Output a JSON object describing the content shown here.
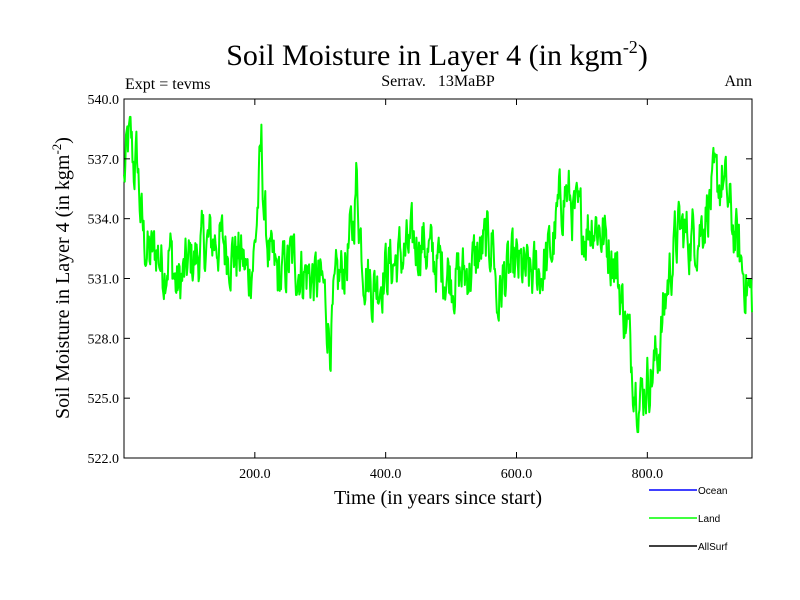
{
  "chart_data": {
    "type": "line",
    "title": "Soil Moisture in Layer 4 (in kgm",
    "title_exponent": "-2",
    "title_suffix": ")",
    "subtitle_left": "Expt = tevms",
    "subtitle_center": "Serrav.   13MaBP",
    "subtitle_right": "Ann",
    "xlabel": "Time (in years since start)",
    "ylabel": "Soil Moisture in Layer 4 (in kgm",
    "ylabel_exponent": "-2",
    "ylabel_suffix": ")",
    "xlim": [
      0,
      960
    ],
    "ylim": [
      522,
      540
    ],
    "xticks": [
      200,
      400,
      600,
      800
    ],
    "xtick_labels": [
      "200.0",
      "400.0",
      "600.0",
      "800.0"
    ],
    "yticks": [
      522,
      525,
      528,
      531,
      534,
      537,
      540
    ],
    "ytick_labels": [
      "522.0",
      "525.0",
      "528.0",
      "531.0",
      "534.0",
      "537.0",
      "540.0"
    ],
    "legend": [
      {
        "name": "Ocean",
        "color": "#0000ff"
      },
      {
        "name": "Land",
        "color": "#00ff00"
      },
      {
        "name": "AllSurf",
        "color": "#000000"
      }
    ],
    "series": [
      {
        "name": "Land",
        "color": "#00ff00",
        "anchors": [
          [
            0,
            535.8
          ],
          [
            5,
            537.5
          ],
          [
            10,
            538.0
          ],
          [
            15,
            536.5
          ],
          [
            20,
            537.0
          ],
          [
            25,
            534.5
          ],
          [
            30,
            533.0
          ],
          [
            40,
            532.0
          ],
          [
            50,
            532.5
          ],
          [
            60,
            531.5
          ],
          [
            70,
            532.5
          ],
          [
            80,
            530.5
          ],
          [
            90,
            531.0
          ],
          [
            100,
            531.8
          ],
          [
            110,
            532.0
          ],
          [
            120,
            532.5
          ],
          [
            140,
            533.0
          ],
          [
            160,
            532.5
          ],
          [
            180,
            532.0
          ],
          [
            190,
            531.0
          ],
          [
            200,
            532.5
          ],
          [
            205,
            535.0
          ],
          [
            210,
            537.5
          ],
          [
            215,
            534.0
          ],
          [
            225,
            531.5
          ],
          [
            240,
            531.0
          ],
          [
            255,
            532.0
          ],
          [
            270,
            531.5
          ],
          [
            290,
            531.0
          ],
          [
            305,
            530.5
          ],
          [
            315,
            528.0
          ],
          [
            325,
            530.5
          ],
          [
            340,
            532.0
          ],
          [
            350,
            533.5
          ],
          [
            355,
            536.0
          ],
          [
            365,
            532.0
          ],
          [
            380,
            530.5
          ],
          [
            400,
            531.5
          ],
          [
            420,
            532.0
          ],
          [
            440,
            532.5
          ],
          [
            455,
            533.0
          ],
          [
            470,
            532.0
          ],
          [
            490,
            531.5
          ],
          [
            510,
            531.0
          ],
          [
            530,
            531.5
          ],
          [
            550,
            532.5
          ],
          [
            565,
            533.0
          ],
          [
            570,
            529.5
          ],
          [
            580,
            531.0
          ],
          [
            600,
            531.5
          ],
          [
            620,
            531.0
          ],
          [
            640,
            531.5
          ],
          [
            655,
            532.5
          ],
          [
            665,
            534.5
          ],
          [
            675,
            535.5
          ],
          [
            690,
            534.0
          ],
          [
            705,
            533.5
          ],
          [
            720,
            534.0
          ],
          [
            735,
            533.0
          ],
          [
            750,
            532.0
          ],
          [
            760,
            530.0
          ],
          [
            770,
            528.5
          ],
          [
            775,
            527.0
          ],
          [
            785,
            525.5
          ],
          [
            790,
            525.0
          ],
          [
            800,
            526.0
          ],
          [
            810,
            526.5
          ],
          [
            820,
            528.0
          ],
          [
            830,
            530.5
          ],
          [
            840,
            532.5
          ],
          [
            850,
            533.5
          ],
          [
            865,
            533.0
          ],
          [
            880,
            533.5
          ],
          [
            895,
            535.0
          ],
          [
            905,
            535.5
          ],
          [
            915,
            536.0
          ],
          [
            925,
            534.5
          ],
          [
            935,
            533.0
          ],
          [
            945,
            531.5
          ],
          [
            955,
            530.5
          ],
          [
            960,
            530.0
          ]
        ]
      }
    ]
  }
}
